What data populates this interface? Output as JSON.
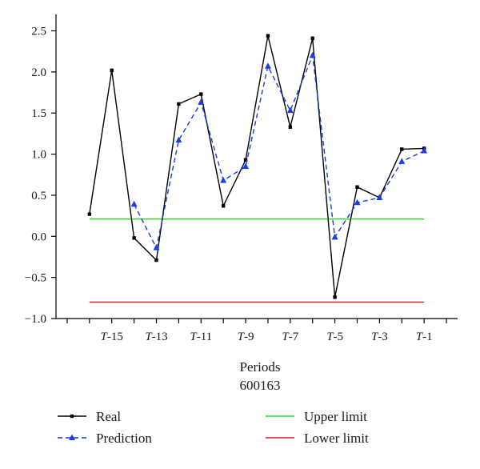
{
  "chart_data": {
    "type": "line",
    "title": "",
    "subtitle": "600163",
    "xlabel": "Periods",
    "ylabel": "",
    "x_tick_labels": [
      {
        "prefix": "T",
        "suffix": "-15",
        "index": 2
      },
      {
        "prefix": "T",
        "suffix": "-13",
        "index": 4
      },
      {
        "prefix": "T",
        "suffix": "-11",
        "index": 6
      },
      {
        "prefix": "T",
        "suffix": "-9",
        "index": 8
      },
      {
        "prefix": "T",
        "suffix": "-7",
        "index": 10
      },
      {
        "prefix": "T",
        "suffix": "-5",
        "index": 12
      },
      {
        "prefix": "T",
        "suffix": "-3",
        "index": 14
      },
      {
        "prefix": "T",
        "suffix": "-1",
        "index": 16
      }
    ],
    "x_range": [
      -0.5,
      17.5
    ],
    "ylim": [
      -1.0,
      2.7
    ],
    "y_ticks": [
      -1.0,
      -0.5,
      0.0,
      0.5,
      1.0,
      1.5,
      2.0,
      2.5
    ],
    "y_tick_labels": [
      "−1.0",
      "−0.5",
      "0.0",
      "0.5",
      "1.0",
      "1.5",
      "2.0",
      "2.5"
    ],
    "grid": false,
    "legend_position": "bottom",
    "series": [
      {
        "name": "Real",
        "color": "#000000",
        "line_style": "solid",
        "marker": "square",
        "x": [
          1,
          2,
          3,
          4,
          5,
          6,
          7,
          8,
          9,
          10,
          11,
          12,
          13,
          14,
          15,
          16
        ],
        "values": [
          0.27,
          2.02,
          -0.02,
          -0.29,
          1.61,
          1.73,
          0.37,
          0.93,
          2.44,
          1.33,
          2.41,
          -0.74,
          0.6,
          0.47,
          1.06,
          1.07
        ]
      },
      {
        "name": "Prediction",
        "color": "#1a3de0",
        "line_style": "dashed",
        "marker": "triangle",
        "x": [
          3,
          4,
          5,
          6,
          7,
          8,
          9,
          10,
          11,
          12,
          13,
          14,
          15,
          16
        ],
        "values": [
          0.39,
          -0.14,
          1.17,
          1.63,
          0.68,
          0.85,
          2.07,
          1.53,
          2.2,
          -0.01,
          0.41,
          0.47,
          0.91,
          1.04
        ]
      },
      {
        "name": "Upper limit",
        "color": "#22dd22",
        "line_style": "solid",
        "marker": "none",
        "x": [
          1,
          16
        ],
        "values": [
          0.21,
          0.21
        ]
      },
      {
        "name": "Lower limit",
        "color": "#dd2222",
        "line_style": "solid",
        "marker": "none",
        "x": [
          1,
          16
        ],
        "values": [
          -0.8,
          -0.8
        ]
      }
    ]
  }
}
